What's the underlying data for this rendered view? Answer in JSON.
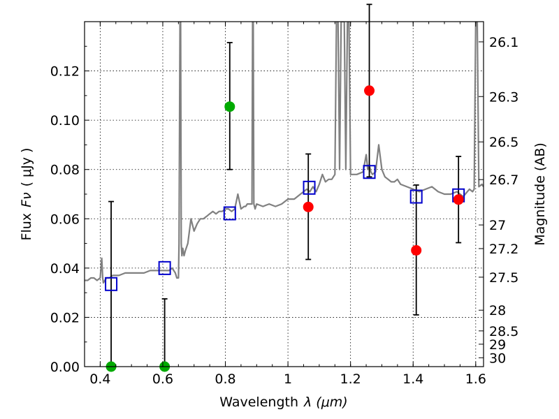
{
  "chart_data": {
    "type": "scatter",
    "xlabel": "Wavelength",
    "xlabel_math": "λ (μm)",
    "ylabel": "Flux",
    "ylabel_math": "Fν",
    "ylabel_unit": "( μJy )",
    "y2label": "Magnitude (AB)",
    "xlim": [
      0.35,
      1.625
    ],
    "ylim": [
      0,
      0.14
    ],
    "xticks": [
      0.4,
      0.6,
      0.8,
      1,
      1.2,
      1.4,
      1.6
    ],
    "xtick_labels": [
      "0.4",
      "0.6",
      "0.8",
      "1",
      "1.2",
      "1.4",
      "1.6"
    ],
    "yticks": [
      0,
      0.02,
      0.04,
      0.06,
      0.08,
      0.1,
      0.12
    ],
    "ytick_labels": [
      "0.00",
      "0.02",
      "0.04",
      "0.06",
      "0.08",
      "0.10",
      "0.12"
    ],
    "y2ticks": [
      {
        "label": "26.1",
        "flux": 0.1318
      },
      {
        "label": "26.3",
        "flux": 0.1096
      },
      {
        "label": "26.5",
        "flux": 0.0912
      },
      {
        "label": "26.7",
        "flux": 0.0759
      },
      {
        "label": "27",
        "flux": 0.0575
      },
      {
        "label": "27.2",
        "flux": 0.0479
      },
      {
        "label": "27.5",
        "flux": 0.0363
      },
      {
        "label": "28",
        "flux": 0.0229
      },
      {
        "label": "28.5",
        "flux": 0.0145
      },
      {
        "label": "29",
        "flux": 0.0091
      },
      {
        "label": "30",
        "flux": 0.0036
      }
    ],
    "grid": true,
    "colors": {
      "spectrum": "#808080",
      "model_box": "#0000cc",
      "detection": "#ff0000",
      "nondetection": "#00aa00",
      "errorbar": "#000000"
    },
    "model_spectrum": {
      "x": [
        0.35,
        0.36,
        0.37,
        0.38,
        0.39,
        0.4,
        0.405,
        0.408,
        0.41,
        0.415,
        0.42,
        0.43,
        0.44,
        0.46,
        0.48,
        0.5,
        0.52,
        0.54,
        0.56,
        0.58,
        0.6,
        0.62,
        0.63,
        0.64,
        0.645,
        0.65,
        0.652,
        0.655,
        0.657,
        0.659,
        0.661,
        0.664,
        0.668,
        0.672,
        0.68,
        0.69,
        0.7,
        0.71,
        0.72,
        0.73,
        0.74,
        0.75,
        0.76,
        0.77,
        0.78,
        0.79,
        0.8,
        0.81,
        0.82,
        0.83,
        0.84,
        0.85,
        0.86,
        0.865,
        0.87,
        0.875,
        0.88,
        0.885,
        0.887,
        0.889,
        0.891,
        0.895,
        0.9,
        0.92,
        0.94,
        0.96,
        0.98,
        1.0,
        1.02,
        1.04,
        1.05,
        1.06,
        1.07,
        1.08,
        1.09,
        1.1,
        1.11,
        1.12,
        1.13,
        1.14,
        1.15,
        1.155,
        1.16,
        1.165,
        1.17,
        1.18,
        1.185,
        1.19,
        1.195,
        1.2,
        1.22,
        1.24,
        1.25,
        1.255,
        1.26,
        1.265,
        1.27,
        1.28,
        1.29,
        1.3,
        1.31,
        1.32,
        1.33,
        1.34,
        1.35,
        1.36,
        1.38,
        1.4,
        1.42,
        1.44,
        1.46,
        1.48,
        1.5,
        1.52,
        1.54,
        1.56,
        1.58,
        1.59,
        1.595,
        1.6,
        1.605,
        1.61,
        1.62,
        1.625
      ],
      "y": [
        0.035,
        0.035,
        0.036,
        0.036,
        0.035,
        0.036,
        0.044,
        0.036,
        0.034,
        0.035,
        0.036,
        0.036,
        0.037,
        0.037,
        0.038,
        0.038,
        0.038,
        0.038,
        0.039,
        0.039,
        0.039,
        0.039,
        0.04,
        0.038,
        0.036,
        0.036,
        0.05,
        0.14,
        0.14,
        0.05,
        0.045,
        0.048,
        0.045,
        0.047,
        0.05,
        0.06,
        0.055,
        0.058,
        0.06,
        0.06,
        0.061,
        0.062,
        0.063,
        0.062,
        0.063,
        0.063,
        0.064,
        0.064,
        0.063,
        0.064,
        0.07,
        0.064,
        0.065,
        0.065,
        0.066,
        0.066,
        0.066,
        0.066,
        0.14,
        0.14,
        0.066,
        0.064,
        0.066,
        0.065,
        0.066,
        0.065,
        0.066,
        0.068,
        0.068,
        0.07,
        0.071,
        0.072,
        0.071,
        0.073,
        0.071,
        0.074,
        0.078,
        0.075,
        0.076,
        0.076,
        0.078,
        0.14,
        0.14,
        0.08,
        0.14,
        0.14,
        0.08,
        0.14,
        0.14,
        0.078,
        0.078,
        0.079,
        0.086,
        0.08,
        0.082,
        0.079,
        0.078,
        0.079,
        0.09,
        0.08,
        0.077,
        0.076,
        0.075,
        0.075,
        0.076,
        0.074,
        0.073,
        0.072,
        0.071,
        0.072,
        0.073,
        0.071,
        0.07,
        0.07,
        0.071,
        0.069,
        0.072,
        0.071,
        0.072,
        0.14,
        0.14,
        0.073,
        0.074,
        0.073
      ],
      "note": ""
    },
    "model_photometry": [
      {
        "x": 0.435,
        "y": 0.0335
      },
      {
        "x": 0.606,
        "y": 0.04
      },
      {
        "x": 0.814,
        "y": 0.0622
      },
      {
        "x": 1.068,
        "y": 0.0726
      },
      {
        "x": 1.26,
        "y": 0.079
      },
      {
        "x": 1.41,
        "y": 0.069
      },
      {
        "x": 1.545,
        "y": 0.0695
      }
    ],
    "observed": [
      {
        "x": 0.435,
        "y": 0.0,
        "err_low": 0.0,
        "err_high": 0.067,
        "detected": false
      },
      {
        "x": 0.606,
        "y": 0.0,
        "err_low": 0.0,
        "err_high": 0.0275,
        "detected": false
      },
      {
        "x": 0.814,
        "y": 0.1055,
        "err_low": 0.0255,
        "err_high": 0.026,
        "detected": false
      },
      {
        "x": 1.065,
        "y": 0.0648,
        "err_low": 0.0213,
        "err_high": 0.0215,
        "detected": true
      },
      {
        "x": 1.26,
        "y": 0.112,
        "err_low": 0.035,
        "err_high": 0.035,
        "detected": true
      },
      {
        "x": 1.41,
        "y": 0.0472,
        "err_low": 0.0262,
        "err_high": 0.0265,
        "detected": true
      },
      {
        "x": 1.545,
        "y": 0.0678,
        "err_low": 0.0175,
        "err_high": 0.0175,
        "detected": true
      }
    ]
  }
}
